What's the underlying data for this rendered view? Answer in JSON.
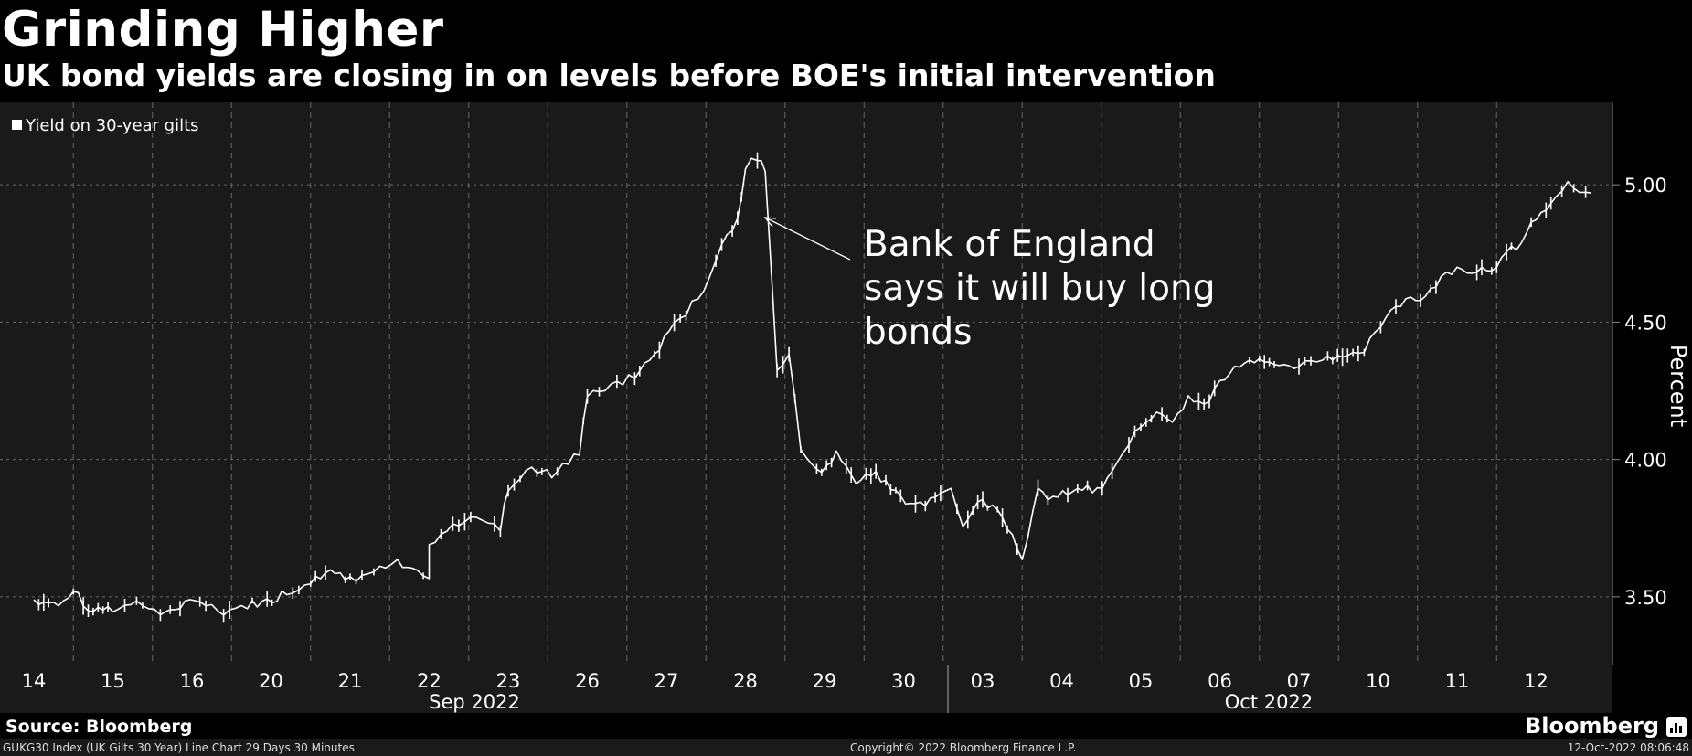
{
  "header": {
    "title": "Grinding Higher",
    "subtitle": "UK bond yields are closing in on levels before BOE's initial intervention"
  },
  "chart_data": {
    "type": "line",
    "series": [
      {
        "name": "Yield on 30-year gilts",
        "color": "#ffffff"
      }
    ],
    "x_ticks": [
      "14",
      "15",
      "16",
      "20",
      "21",
      "22",
      "23",
      "26",
      "27",
      "28",
      "29",
      "30",
      "03",
      "04",
      "05",
      "06",
      "07",
      "10",
      "11",
      "12"
    ],
    "x_groups": [
      "Sep 2022",
      "Oct 2022"
    ],
    "ylabel": "Percent",
    "y_ticks": [
      "3.50",
      "4.00",
      "4.50",
      "5.00"
    ],
    "ylim": [
      3.25,
      5.3
    ],
    "annotation": {
      "lines": [
        "Bank of England",
        "says it will buy long",
        "bonds"
      ],
      "date": "2022-09-28"
    },
    "x": [
      "2022-09-14",
      "2022-09-15",
      "2022-09-16",
      "2022-09-20",
      "2022-09-21",
      "2022-09-22",
      "2022-09-23",
      "2022-09-26",
      "2022-09-27",
      "2022-09-28",
      "2022-09-29",
      "2022-09-30",
      "2022-10-03",
      "2022-10-04",
      "2022-10-05",
      "2022-10-06",
      "2022-10-07",
      "2022-10-10",
      "2022-10-11",
      "2022-10-12"
    ],
    "points": [
      [
        0,
        3.49
      ],
      [
        0.25,
        3.47
      ],
      [
        0.5,
        3.52
      ],
      [
        0.75,
        3.44
      ],
      [
        1,
        3.46
      ],
      [
        1.3,
        3.48
      ],
      [
        1.6,
        3.44
      ],
      [
        1.85,
        3.47
      ],
      [
        2.1,
        3.48
      ],
      [
        2.4,
        3.45
      ],
      [
        2.7,
        3.47
      ],
      [
        2.95,
        3.48
      ],
      [
        3.2,
        3.52
      ],
      [
        3.5,
        3.56
      ],
      [
        3.75,
        3.6
      ],
      [
        4.0,
        3.56
      ],
      [
        4.3,
        3.59
      ],
      [
        4.6,
        3.62
      ],
      [
        4.85,
        3.58
      ],
      [
        5.0,
        3.55
      ],
      [
        5.0,
        3.68
      ],
      [
        5.3,
        3.76
      ],
      [
        5.6,
        3.8
      ],
      [
        5.9,
        3.75
      ],
      [
        6.0,
        3.9
      ],
      [
        6.3,
        3.97
      ],
      [
        6.55,
        3.95
      ],
      [
        6.9,
        4.02
      ],
      [
        7.0,
        4.24
      ],
      [
        7.3,
        4.27
      ],
      [
        7.6,
        4.3
      ],
      [
        7.85,
        4.38
      ],
      [
        8.1,
        4.5
      ],
      [
        8.4,
        4.58
      ],
      [
        8.7,
        4.78
      ],
      [
        8.9,
        4.88
      ],
      [
        9.0,
        5.06
      ],
      [
        9.15,
        5.1
      ],
      [
        9.25,
        5.04
      ],
      [
        9.4,
        4.32
      ],
      [
        9.55,
        4.38
      ],
      [
        9.7,
        4.05
      ],
      [
        9.9,
        3.95
      ],
      [
        10.15,
        4.02
      ],
      [
        10.4,
        3.92
      ],
      [
        10.65,
        3.95
      ],
      [
        10.9,
        3.88
      ],
      [
        11.15,
        3.83
      ],
      [
        11.4,
        3.85
      ],
      [
        11.6,
        3.9
      ],
      [
        11.75,
        3.77
      ],
      [
        12.0,
        3.85
      ],
      [
        12.25,
        3.8
      ],
      [
        12.5,
        3.65
      ],
      [
        12.7,
        3.88
      ],
      [
        12.95,
        3.86
      ],
      [
        13.2,
        3.9
      ],
      [
        13.45,
        3.88
      ],
      [
        13.7,
        3.98
      ],
      [
        13.85,
        4.05
      ],
      [
        14.0,
        4.12
      ],
      [
        14.2,
        4.18
      ],
      [
        14.4,
        4.15
      ],
      [
        14.6,
        4.22
      ],
      [
        14.8,
        4.2
      ],
      [
        15.0,
        4.28
      ],
      [
        15.25,
        4.34
      ],
      [
        15.5,
        4.35
      ],
      [
        15.75,
        4.33
      ],
      [
        16.0,
        4.35
      ],
      [
        16.3,
        4.36
      ],
      [
        16.55,
        4.39
      ],
      [
        16.75,
        4.37
      ],
      [
        16.9,
        4.44
      ],
      [
        17.1,
        4.52
      ],
      [
        17.35,
        4.58
      ],
      [
        17.6,
        4.6
      ],
      [
        17.8,
        4.66
      ],
      [
        18.0,
        4.7
      ],
      [
        18.25,
        4.68
      ],
      [
        18.5,
        4.7
      ],
      [
        18.75,
        4.78
      ],
      [
        19.0,
        4.88
      ],
      [
        19.25,
        4.95
      ],
      [
        19.4,
        5.02
      ],
      [
        19.55,
        4.98
      ],
      [
        19.7,
        4.97
      ]
    ]
  },
  "footer": {
    "source": "Source: Bloomberg",
    "brand": "Bloomberg",
    "index_desc": "GUKG30 Index (UK Gilts 30 Year) Line Chart 29 Days 30 Minutes",
    "copyright": "Copyright© 2022 Bloomberg Finance L.P.",
    "timestamp": "12-Oct-2022 08:06:48"
  }
}
